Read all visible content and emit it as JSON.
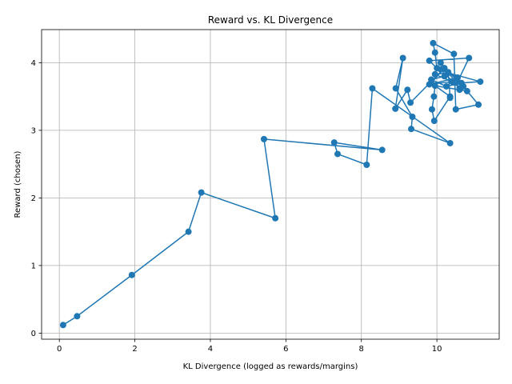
{
  "chart_data": {
    "type": "line",
    "title": "Reward vs. KL Divergence",
    "xlabel": "KL Divergence (logged as rewards/margins)",
    "ylabel": "Reward (chosen)",
    "xlim": [
      -0.47,
      11.65
    ],
    "ylim": [
      -0.09,
      4.49
    ],
    "xticks": [
      0,
      2,
      4,
      6,
      8,
      10
    ],
    "yticks": [
      0,
      1,
      2,
      3,
      4
    ],
    "grid": true,
    "markers": true,
    "color": "#1f77b4",
    "series": [
      {
        "points": [
          [
            0.1,
            0.12
          ],
          [
            0.47,
            0.25
          ],
          [
            1.92,
            0.86
          ],
          [
            3.42,
            1.5
          ],
          [
            3.76,
            2.08
          ],
          [
            5.72,
            1.7
          ],
          [
            5.42,
            2.87
          ],
          [
            8.55,
            2.71
          ],
          [
            7.28,
            2.82
          ],
          [
            7.37,
            2.65
          ],
          [
            8.14,
            2.49
          ],
          [
            8.29,
            3.62
          ],
          [
            10.35,
            2.81
          ],
          [
            9.32,
            3.02
          ],
          [
            9.35,
            3.2
          ],
          [
            8.91,
            3.62
          ],
          [
            9.1,
            4.07
          ],
          [
            8.9,
            3.32
          ],
          [
            9.22,
            3.6
          ],
          [
            9.3,
            3.41
          ],
          [
            10.2,
            3.92
          ],
          [
            9.85,
            3.7
          ],
          [
            10.35,
            3.5
          ],
          [
            9.93,
            3.14
          ],
          [
            9.87,
            3.31
          ],
          [
            9.92,
            3.5
          ],
          [
            9.95,
            3.66
          ],
          [
            10.6,
            3.6
          ],
          [
            10.8,
            3.58
          ],
          [
            10.7,
            3.65
          ],
          [
            11.1,
            3.38
          ],
          [
            10.5,
            3.31
          ],
          [
            10.45,
            4.13
          ],
          [
            9.9,
            4.29
          ],
          [
            9.95,
            4.15
          ],
          [
            10.0,
            3.92
          ],
          [
            9.8,
            4.03
          ],
          [
            10.85,
            4.07
          ],
          [
            10.55,
            3.72
          ],
          [
            10.1,
            4.0
          ],
          [
            10.2,
            3.8
          ],
          [
            9.85,
            3.75
          ],
          [
            10.25,
            3.65
          ],
          [
            10.65,
            3.7
          ],
          [
            11.15,
            3.72
          ],
          [
            10.3,
            3.85
          ],
          [
            9.95,
            3.83
          ],
          [
            10.4,
            3.72
          ],
          [
            9.8,
            3.68
          ],
          [
            10.55,
            3.78
          ],
          [
            10.1,
            3.9
          ],
          [
            10.6,
            3.62
          ],
          [
            10.3,
            3.86
          ],
          [
            10.35,
            3.48
          ]
        ]
      }
    ]
  }
}
